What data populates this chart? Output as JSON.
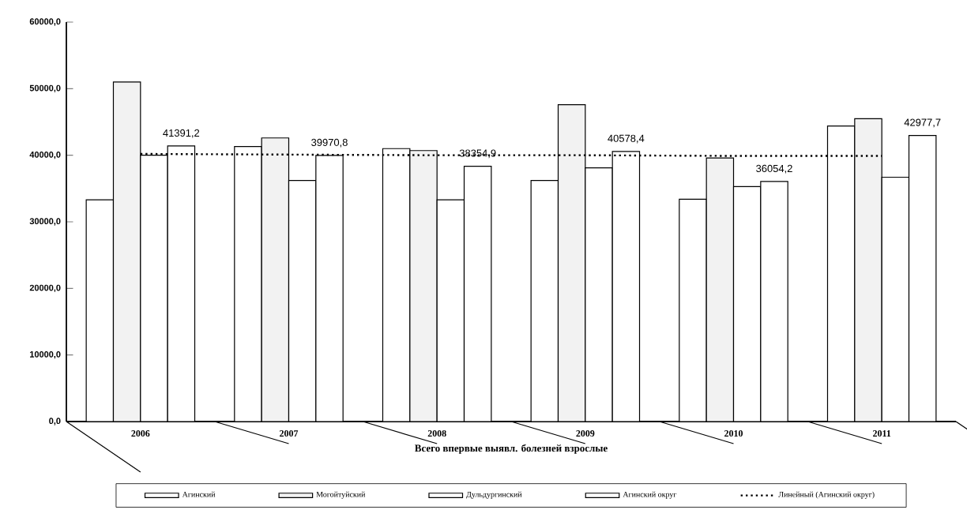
{
  "chart_data": {
    "type": "bar",
    "xlabel": "Всего впервые выявл. болезней взрослые",
    "categories": [
      "2006",
      "2007",
      "2008",
      "2009",
      "2010",
      "2011"
    ],
    "series": [
      {
        "name": "Агинский",
        "color": "#ffffff",
        "values": [
          33300,
          41300,
          41000,
          36200,
          33400,
          44400
        ]
      },
      {
        "name": "Могойтуйский",
        "color": "#f2f2f2",
        "values": [
          51000,
          42600,
          40700,
          47600,
          39600,
          45500
        ]
      },
      {
        "name": "Дульдургинский",
        "color": "#ffffff",
        "values": [
          40000,
          36200,
          33300,
          38100,
          35300,
          36700
        ]
      },
      {
        "name": "Агинский округ",
        "color": "#ffffff",
        "values": [
          41391.2,
          39970.8,
          38354.9,
          40578.4,
          36054.2,
          42977.7
        ],
        "value_labels": [
          "41391,2",
          "39970,8",
          "38354,9",
          "40578,4",
          "36054,2",
          "42977,7"
        ]
      },
      {
        "name": "Линейный (Агинский округ)",
        "type": "line",
        "color": "#000000",
        "line_style": "dotted",
        "marker": "none",
        "values": [
          40200,
          40100,
          40000,
          40000,
          39900,
          39900
        ]
      }
    ],
    "ylim": [
      0,
      60000
    ],
    "yticks": [
      {
        "value": 0,
        "label": "0,0"
      },
      {
        "value": 10000,
        "label": "10000,0"
      },
      {
        "value": 20000,
        "label": "20000,0"
      },
      {
        "value": 30000,
        "label": "30000,0"
      },
      {
        "value": 40000,
        "label": "40000,0"
      },
      {
        "value": 50000,
        "label": "50000,0"
      },
      {
        "value": 60000,
        "label": "60000,0"
      }
    ],
    "legend": "bottom"
  }
}
